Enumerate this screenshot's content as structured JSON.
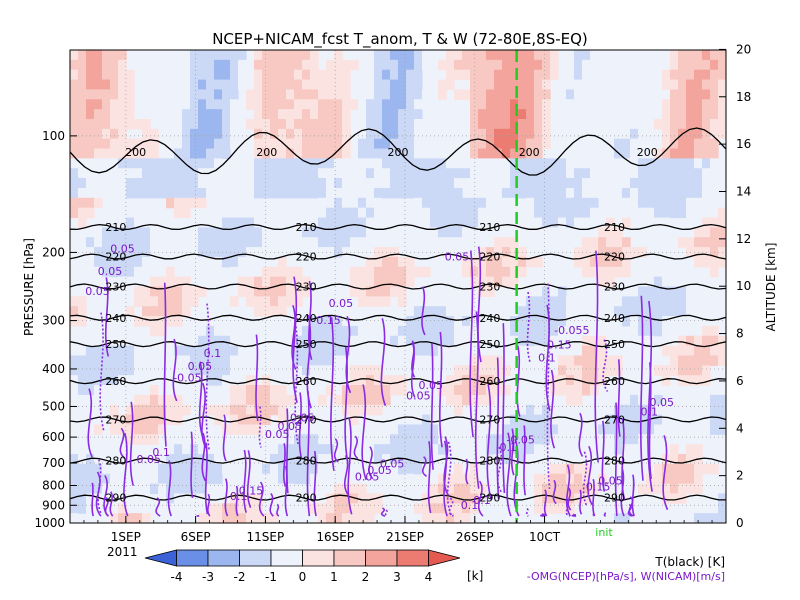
{
  "chart_data": {
    "type": "heatmap",
    "title": "NCEP+NICAM_fcst T_anom, T & W  (72-80E,8S-EQ)",
    "ylabel_left": "PRESSURE [hPa]",
    "ylabel_right": "ALTITUDE [km]",
    "year_label": "2011",
    "init_label": "init",
    "x_range": [
      "2011-08-28",
      "2011-10-14"
    ],
    "init_date": "2011-09-29",
    "x_ticks": [
      "1SEP",
      "6SEP",
      "11SEP",
      "16SEP",
      "21SEP",
      "26SEP",
      "10CT"
    ],
    "x_tick_dates": [
      "2011-09-01",
      "2011-09-06",
      "2011-09-11",
      "2011-09-16",
      "2011-09-21",
      "2011-09-26",
      "2011-10-01"
    ],
    "pressure_ticks": [
      "100",
      "200",
      "300",
      "400",
      "500",
      "600",
      "700",
      "800",
      "900",
      "1000"
    ],
    "pressure_values": [
      100,
      200,
      300,
      400,
      500,
      600,
      700,
      800,
      900,
      1000
    ],
    "altitude_ticks": [
      "0",
      "2",
      "4",
      "6",
      "8",
      "10",
      "12",
      "14",
      "16",
      "18",
      "20"
    ],
    "colorbar": {
      "labels": [
        "-4",
        "-3",
        "-2",
        "-1",
        "0",
        "1",
        "2",
        "3",
        "4"
      ],
      "unit": "[k]",
      "colors": [
        "#3b62d6",
        "#6a8fe6",
        "#9cb7f0",
        "#cbd8f6",
        "#eef2fb",
        "#fbe3e1",
        "#f8c8c3",
        "#f3a59d",
        "#ec7c72",
        "#e45a50"
      ]
    },
    "legend": {
      "temperature": "T(black) [K]",
      "vertical_motion": "-OMG(NCEP)[hPa/s], W(NICAM)[m/s]"
    },
    "temperature_contours": [
      {
        "label": "200",
        "pressure": 110
      },
      {
        "label": "210",
        "pressure": 172
      },
      {
        "label": "220",
        "pressure": 205
      },
      {
        "label": "230",
        "pressure": 245
      },
      {
        "label": "240",
        "pressure": 295
      },
      {
        "label": "250",
        "pressure": 345
      },
      {
        "label": "260",
        "pressure": 430
      },
      {
        "label": "270",
        "pressure": 540
      },
      {
        "label": "280",
        "pressure": 690
      },
      {
        "label": "290",
        "pressure": 860
      }
    ],
    "omega_labels": [
      "0.05",
      "0.1",
      "0.05",
      "0.05",
      "0.1",
      "-0.055",
      "0.05",
      "0.1",
      "0.15",
      "0.05",
      "0.05",
      "-0.05",
      "0.05",
      "0.05",
      "0.05",
      "0.05",
      "0.05",
      "0.1",
      "0.15",
      "0.1",
      "0.05",
      "0.1",
      "0.15",
      "0.05",
      "0.1",
      "0.15",
      "0.05",
      "-0.05",
      "0.05",
      "0.05",
      "0.05",
      "0.1"
    ]
  }
}
